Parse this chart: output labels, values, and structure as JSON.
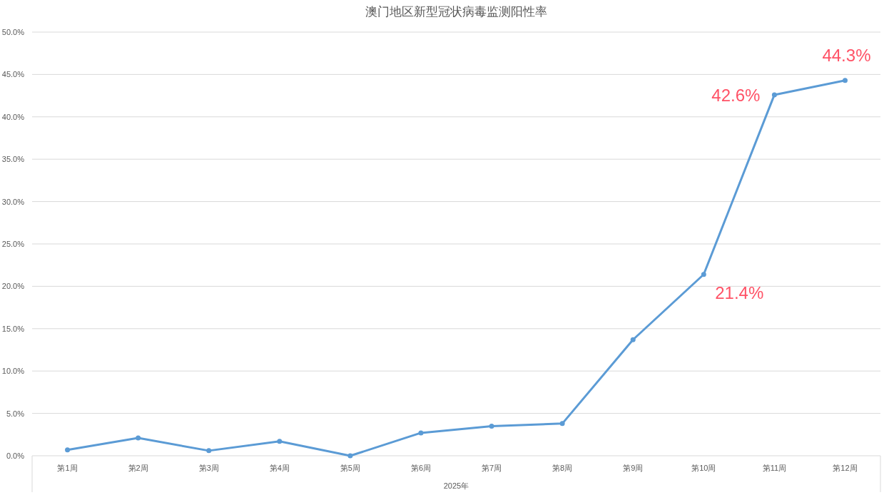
{
  "chart_data": {
    "type": "line",
    "title": "澳门地区新型冠状病毒监测阳性率",
    "xlabel": "2025年",
    "categories": [
      "第1周",
      "第2周",
      "第3周",
      "第4周",
      "第5周",
      "第6周",
      "第7周",
      "第8周",
      "第9周",
      "第10周",
      "第11周",
      "第12周"
    ],
    "series": [
      {
        "color": "#5b9bd5",
        "values": [
          0.7,
          2.1,
          0.6,
          1.7,
          0.0,
          2.7,
          3.5,
          3.8,
          13.7,
          21.4,
          42.6,
          44.3
        ],
        "value_labels": [
          null,
          null,
          null,
          null,
          null,
          null,
          null,
          null,
          null,
          "21.4%",
          "42.6%",
          "44.3%"
        ]
      }
    ],
    "ylim": [
      0,
      50
    ],
    "yticks": [
      {
        "value": 0,
        "label": "0.0%"
      },
      {
        "value": 5,
        "label": "5.0%"
      },
      {
        "value": 10,
        "label": "10.0%"
      },
      {
        "value": 15,
        "label": "15.0%"
      },
      {
        "value": 20,
        "label": "20.0%"
      },
      {
        "value": 25,
        "label": "25.0%"
      },
      {
        "value": 30,
        "label": "30.0%"
      },
      {
        "value": 35,
        "label": "35.0%"
      },
      {
        "value": 40,
        "label": "40.0%"
      },
      {
        "value": 45,
        "label": "45.0%"
      },
      {
        "value": 50,
        "label": "50.0%"
      }
    ],
    "grid": "y",
    "marker": "circle",
    "line_style": "solid"
  }
}
